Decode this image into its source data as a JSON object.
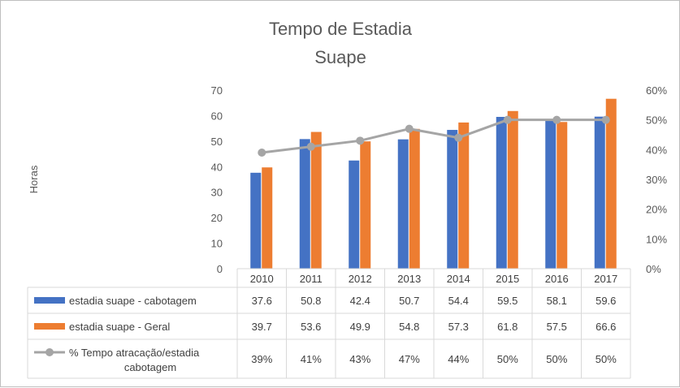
{
  "chart_data": {
    "type": "bar",
    "title": [
      "Tempo de Estadia",
      "Suape"
    ],
    "ylabel": "Horas",
    "ylim": [
      0,
      70
    ],
    "yticks": [
      "0",
      "10",
      "20",
      "30",
      "40",
      "50",
      "60",
      "70"
    ],
    "y2lim": [
      0,
      60
    ],
    "y2ticks": [
      "0%",
      "10%",
      "20%",
      "30%",
      "40%",
      "50%",
      "60%"
    ],
    "categories": [
      "2010",
      "2011",
      "2012",
      "2013",
      "2014",
      "2015",
      "2016",
      "2017"
    ],
    "series": [
      {
        "name": "estadia suape - cabotagem",
        "kind": "bar",
        "axis": "left",
        "color": "#4472C4",
        "values": [
          37.6,
          50.8,
          42.4,
          50.7,
          54.4,
          59.5,
          58.1,
          59.6
        ],
        "labels": [
          "37.6",
          "50.8",
          "42.4",
          "50.7",
          "54.4",
          "59.5",
          "58.1",
          "59.6"
        ]
      },
      {
        "name": "estadia suape - Geral",
        "kind": "bar",
        "axis": "left",
        "color": "#ED7D31",
        "values": [
          39.7,
          53.6,
          49.9,
          54.8,
          57.3,
          61.8,
          57.5,
          66.6
        ],
        "labels": [
          "39.7",
          "53.6",
          "49.9",
          "54.8",
          "57.3",
          "61.8",
          "57.5",
          "66.6"
        ]
      },
      {
        "name": [
          "% Tempo atracação/estadia",
          "cabotagem"
        ],
        "kind": "line",
        "axis": "right",
        "color": "#A5A5A5",
        "values": [
          39,
          41,
          43,
          47,
          44,
          50,
          50,
          50
        ],
        "labels": [
          "39%",
          "41%",
          "43%",
          "47%",
          "44%",
          "50%",
          "50%",
          "50%"
        ]
      }
    ],
    "grid": false,
    "legend": "data-table"
  }
}
